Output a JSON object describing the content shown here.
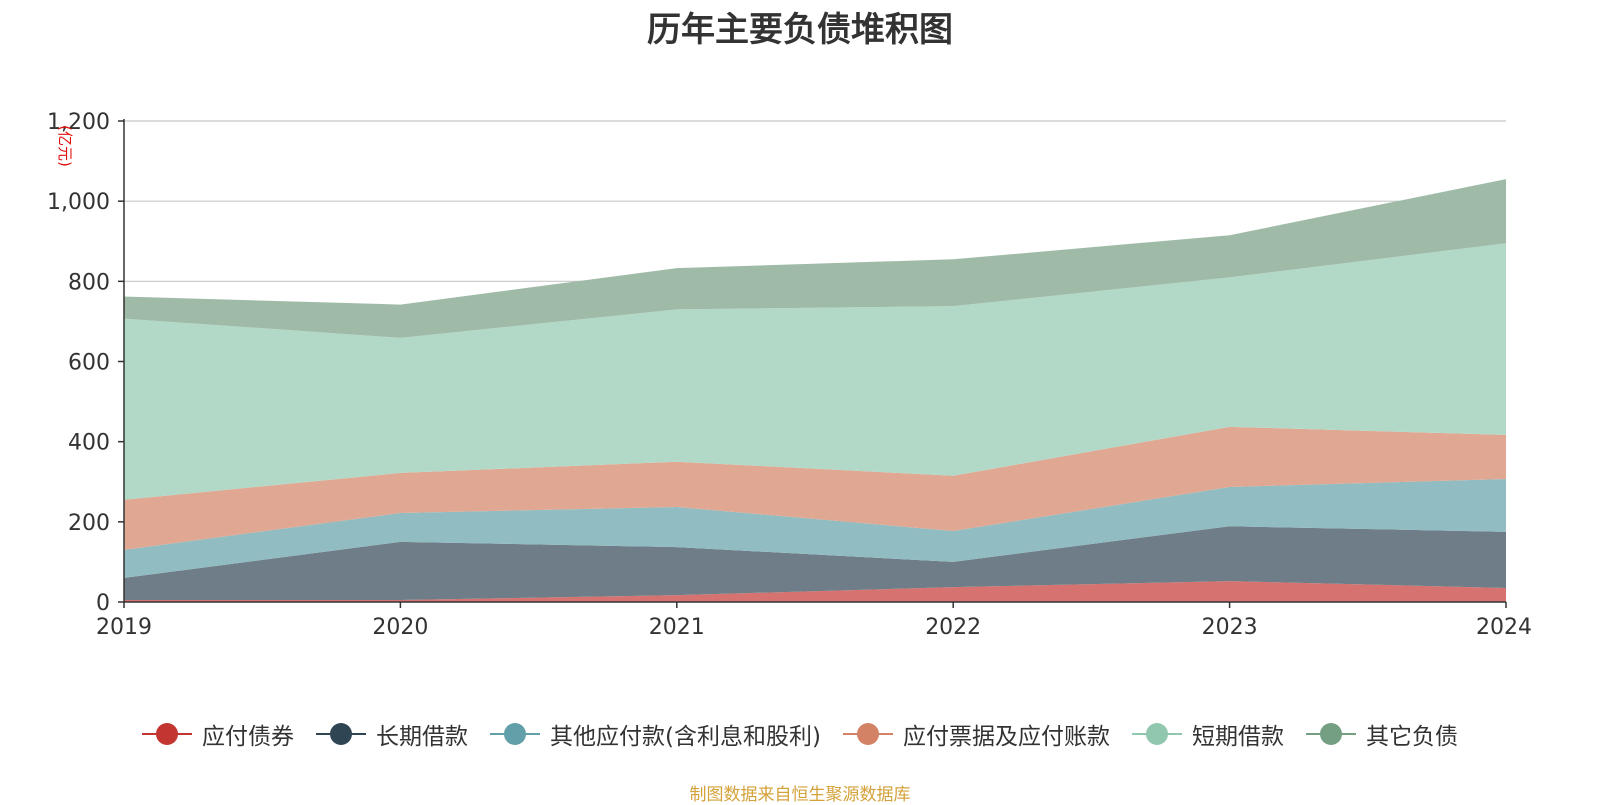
{
  "chart_data": {
    "type": "area",
    "stacked": true,
    "title": "历年主要负债堆积图",
    "ylabel": "(亿元)",
    "xlabel": "",
    "categories": [
      "2019",
      "2020",
      "2021",
      "2022",
      "2023",
      "2024"
    ],
    "ylim": [
      0,
      1200
    ],
    "yticks": [
      0,
      200,
      400,
      600,
      800,
      1000,
      1200
    ],
    "ytick_labels": [
      "0",
      "200",
      "400",
      "600",
      "800",
      "1,000",
      "1,200"
    ],
    "grid": true,
    "legend_position": "bottom",
    "series": [
      {
        "name": "应付债券",
        "color": "#c23531",
        "fill": "#d67370",
        "values": [
          5,
          5,
          17,
          37,
          52,
          35
        ]
      },
      {
        "name": "长期借款",
        "color": "#2f4554",
        "fill": "#6e7d87",
        "values": [
          55,
          145,
          120,
          63,
          137,
          140
        ]
      },
      {
        "name": "其他应付款(含利息和股利)",
        "color": "#61a0a8",
        "fill": "#90bcc2",
        "values": [
          70,
          72,
          100,
          77,
          98,
          132
        ]
      },
      {
        "name": "应付票据及应付账款",
        "color": "#d48265",
        "fill": "#e0a893",
        "values": [
          125,
          100,
          113,
          138,
          150,
          110
        ]
      },
      {
        "name": "短期借款",
        "color": "#91c7ae",
        "fill": "#b2d9c7",
        "values": [
          452,
          337,
          380,
          423,
          373,
          478
        ]
      },
      {
        "name": "其它负债",
        "color": "#749f83",
        "fill": "#9fbba8",
        "values": [
          55,
          83,
          103,
          117,
          105,
          160
        ]
      }
    ]
  },
  "footer": {
    "source": "制图数据来自恒生聚源数据库"
  }
}
